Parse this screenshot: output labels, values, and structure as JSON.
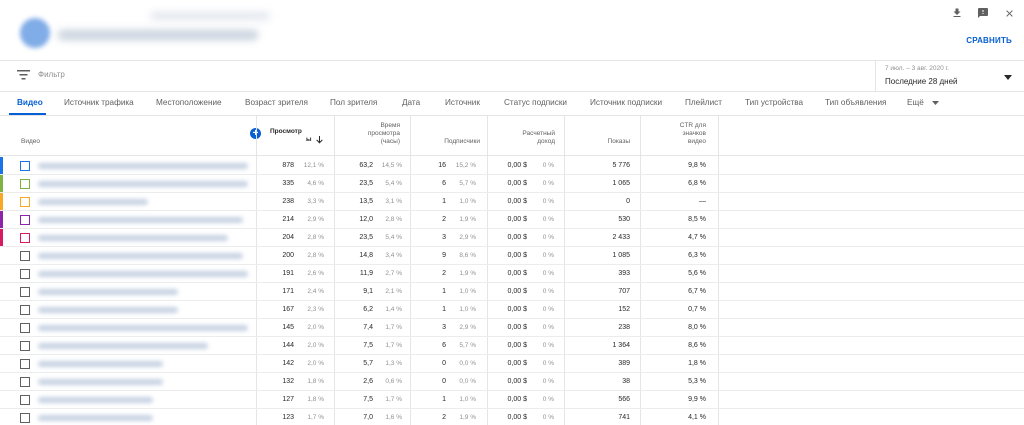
{
  "header": {
    "compare_label": "СРАВНИТЬ",
    "icons": [
      "download-icon",
      "feedback-icon",
      "close-icon"
    ]
  },
  "filter": {
    "placeholder": "Фильтр",
    "date_range": "7 июл. – 3 авг. 2020 г.",
    "period": "Последние 28 дней"
  },
  "tabs": [
    {
      "label": "Видео",
      "active": true
    },
    {
      "label": "Источник трафика"
    },
    {
      "label": "Местоположение"
    },
    {
      "label": "Возраст зрителя"
    },
    {
      "label": "Пол зрителя"
    },
    {
      "label": "Дата"
    },
    {
      "label": "Источник"
    },
    {
      "label": "Статус подписки"
    },
    {
      "label": "Источник подписки"
    },
    {
      "label": "Плейлист"
    },
    {
      "label": "Тип устройства"
    },
    {
      "label": "Тип объявления"
    },
    {
      "label": "Ещё"
    }
  ],
  "columns": {
    "video": "Видео",
    "views_line1": "Просмотр",
    "views_line2": "ы",
    "watch_line1": "Время",
    "watch_line2": "просмотра",
    "watch_line3": "(часы)",
    "subs": "Подписчики",
    "revenue_line1": "Расчетный",
    "revenue_line2": "доход",
    "impressions": "Показы",
    "ctr_line1": "CTR для",
    "ctr_line2": "значков",
    "ctr_line3": "видео"
  },
  "colors": {
    "accent": "#065fd4",
    "series": [
      "#1a73e8",
      "#7cb342",
      "#f9a825",
      "#8e24aa",
      "#d81b60"
    ]
  },
  "rows": [
    {
      "views": "878",
      "views_pct": "12,1 %",
      "watch": "63,2",
      "watch_pct": "14,5 %",
      "subs": "16",
      "subs_pct": "15,2 %",
      "rev": "0,00 $",
      "rev_pct": "0 %",
      "imp": "5 776",
      "ctr": "9,8 %"
    },
    {
      "views": "335",
      "views_pct": "4,6 %",
      "watch": "23,5",
      "watch_pct": "5,4 %",
      "subs": "6",
      "subs_pct": "5,7 %",
      "rev": "0,00 $",
      "rev_pct": "0 %",
      "imp": "1 065",
      "ctr": "6,8 %"
    },
    {
      "views": "238",
      "views_pct": "3,3 %",
      "watch": "13,5",
      "watch_pct": "3,1 %",
      "subs": "1",
      "subs_pct": "1,0 %",
      "rev": "0,00 $",
      "rev_pct": "0 %",
      "imp": "0",
      "ctr": "—"
    },
    {
      "views": "214",
      "views_pct": "2,9 %",
      "watch": "12,0",
      "watch_pct": "2,8 %",
      "subs": "2",
      "subs_pct": "1,9 %",
      "rev": "0,00 $",
      "rev_pct": "0 %",
      "imp": "530",
      "ctr": "8,5 %"
    },
    {
      "views": "204",
      "views_pct": "2,8 %",
      "watch": "23,5",
      "watch_pct": "5,4 %",
      "subs": "3",
      "subs_pct": "2,9 %",
      "rev": "0,00 $",
      "rev_pct": "0 %",
      "imp": "2 433",
      "ctr": "4,7 %"
    },
    {
      "views": "200",
      "views_pct": "2,8 %",
      "watch": "14,8",
      "watch_pct": "3,4 %",
      "subs": "9",
      "subs_pct": "8,6 %",
      "rev": "0,00 $",
      "rev_pct": "0 %",
      "imp": "1 085",
      "ctr": "6,3 %"
    },
    {
      "views": "191",
      "views_pct": "2,6 %",
      "watch": "11,9",
      "watch_pct": "2,7 %",
      "subs": "2",
      "subs_pct": "1,9 %",
      "rev": "0,00 $",
      "rev_pct": "0 %",
      "imp": "393",
      "ctr": "5,6 %"
    },
    {
      "views": "171",
      "views_pct": "2,4 %",
      "watch": "9,1",
      "watch_pct": "2,1 %",
      "subs": "1",
      "subs_pct": "1,0 %",
      "rev": "0,00 $",
      "rev_pct": "0 %",
      "imp": "707",
      "ctr": "6,7 %"
    },
    {
      "views": "167",
      "views_pct": "2,3 %",
      "watch": "6,2",
      "watch_pct": "1,4 %",
      "subs": "1",
      "subs_pct": "1,0 %",
      "rev": "0,00 $",
      "rev_pct": "0 %",
      "imp": "152",
      "ctr": "0,7 %"
    },
    {
      "views": "145",
      "views_pct": "2,0 %",
      "watch": "7,4",
      "watch_pct": "1,7 %",
      "subs": "3",
      "subs_pct": "2,9 %",
      "rev": "0,00 $",
      "rev_pct": "0 %",
      "imp": "238",
      "ctr": "8,0 %"
    },
    {
      "views": "144",
      "views_pct": "2,0 %",
      "watch": "7,5",
      "watch_pct": "1,7 %",
      "subs": "6",
      "subs_pct": "5,7 %",
      "rev": "0,00 $",
      "rev_pct": "0 %",
      "imp": "1 364",
      "ctr": "8,6 %"
    },
    {
      "views": "142",
      "views_pct": "2,0 %",
      "watch": "5,7",
      "watch_pct": "1,3 %",
      "subs": "0",
      "subs_pct": "0,0 %",
      "rev": "0,00 $",
      "rev_pct": "0 %",
      "imp": "389",
      "ctr": "1,8 %"
    },
    {
      "views": "132",
      "views_pct": "1,8 %",
      "watch": "2,6",
      "watch_pct": "0,6 %",
      "subs": "0",
      "subs_pct": "0,0 %",
      "rev": "0,00 $",
      "rev_pct": "0 %",
      "imp": "38",
      "ctr": "5,3 %"
    },
    {
      "views": "127",
      "views_pct": "1,8 %",
      "watch": "7,5",
      "watch_pct": "1,7 %",
      "subs": "1",
      "subs_pct": "1,0 %",
      "rev": "0,00 $",
      "rev_pct": "0 %",
      "imp": "566",
      "ctr": "9,9 %"
    },
    {
      "views": "123",
      "views_pct": "1,7 %",
      "watch": "7,0",
      "watch_pct": "1,6 %",
      "subs": "2",
      "subs_pct": "1,9 %",
      "rev": "0,00 $",
      "rev_pct": "0 %",
      "imp": "741",
      "ctr": "4,1 %"
    }
  ]
}
